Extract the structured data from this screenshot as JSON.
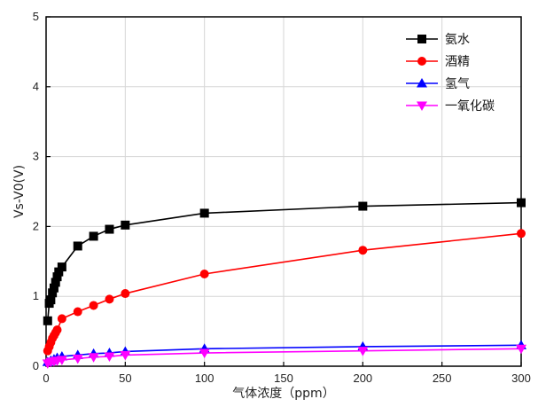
{
  "chart_data": {
    "type": "line",
    "xlabel": "气体浓度（ppm）",
    "ylabel": "Vs-V0(V)",
    "xlim": [
      0,
      300
    ],
    "ylim": [
      0,
      5
    ],
    "x_ticks": [
      0,
      50,
      100,
      150,
      200,
      250,
      300
    ],
    "y_ticks": [
      0,
      1,
      2,
      3,
      4,
      5
    ],
    "grid": true,
    "legend_position": "top-right",
    "series": [
      {
        "name": "氨水",
        "color": "#000000",
        "marker": "square",
        "points": [
          [
            1,
            0.65
          ],
          [
            2,
            0.9
          ],
          [
            3,
            0.95
          ],
          [
            4,
            1.05
          ],
          [
            5,
            1.12
          ],
          [
            6,
            1.2
          ],
          [
            7,
            1.28
          ],
          [
            8,
            1.35
          ],
          [
            10,
            1.42
          ],
          [
            20,
            1.72
          ],
          [
            30,
            1.86
          ],
          [
            40,
            1.96
          ],
          [
            50,
            2.02
          ],
          [
            100,
            2.19
          ],
          [
            200,
            2.29
          ],
          [
            300,
            2.34
          ]
        ]
      },
      {
        "name": "酒精",
        "color": "#ff0000",
        "marker": "circle",
        "points": [
          [
            1,
            0.22
          ],
          [
            2,
            0.28
          ],
          [
            3,
            0.34
          ],
          [
            4,
            0.4
          ],
          [
            5,
            0.44
          ],
          [
            6,
            0.48
          ],
          [
            7,
            0.52
          ],
          [
            10,
            0.68
          ],
          [
            20,
            0.78
          ],
          [
            30,
            0.87
          ],
          [
            40,
            0.96
          ],
          [
            50,
            1.04
          ],
          [
            100,
            1.32
          ],
          [
            200,
            1.66
          ],
          [
            300,
            1.9
          ]
        ]
      },
      {
        "name": "氢气",
        "color": "#0000ff",
        "marker": "triangle-up",
        "points": [
          [
            1,
            0.06
          ],
          [
            3,
            0.08
          ],
          [
            5,
            0.1
          ],
          [
            7,
            0.12
          ],
          [
            10,
            0.14
          ],
          [
            20,
            0.16
          ],
          [
            30,
            0.18
          ],
          [
            40,
            0.19
          ],
          [
            50,
            0.21
          ],
          [
            100,
            0.25
          ],
          [
            200,
            0.28
          ],
          [
            300,
            0.3
          ]
        ]
      },
      {
        "name": "一氧化碳",
        "color": "#ff00ff",
        "marker": "triangle-down",
        "points": [
          [
            1,
            0.04
          ],
          [
            3,
            0.06
          ],
          [
            5,
            0.07
          ],
          [
            7,
            0.08
          ],
          [
            10,
            0.09
          ],
          [
            20,
            0.11
          ],
          [
            30,
            0.13
          ],
          [
            40,
            0.14
          ],
          [
            50,
            0.16
          ],
          [
            100,
            0.19
          ],
          [
            200,
            0.22
          ],
          [
            300,
            0.25
          ]
        ]
      }
    ]
  }
}
